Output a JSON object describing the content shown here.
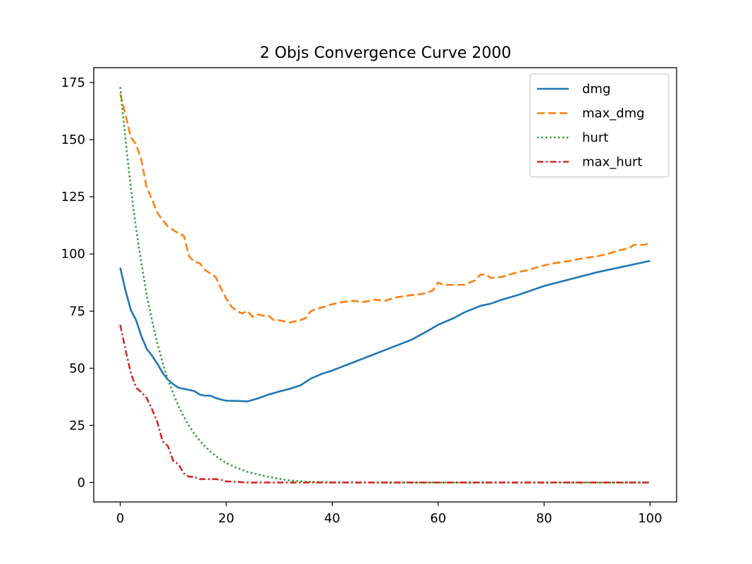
{
  "chart_data": {
    "type": "line",
    "title": "2 Objs Convergence Curve 2000",
    "xlabel": "",
    "ylabel": "",
    "xlim": [
      -5,
      105
    ],
    "ylim": [
      -8.5,
      181.5
    ],
    "x_ticks": [
      0,
      20,
      40,
      60,
      80,
      100
    ],
    "y_ticks": [
      0,
      25,
      50,
      75,
      100,
      125,
      150,
      175
    ],
    "legend_position": "top-right",
    "grid": false,
    "series": [
      {
        "name": "dmg",
        "color": "#1f77b4",
        "dash": "solid",
        "points": [
          [
            0,
            94
          ],
          [
            1,
            84
          ],
          [
            2,
            75.5
          ],
          [
            3,
            71
          ],
          [
            4,
            64
          ],
          [
            5,
            58.5
          ],
          [
            6,
            55.5
          ],
          [
            7,
            52
          ],
          [
            8,
            48
          ],
          [
            9,
            45
          ],
          [
            10,
            43
          ],
          [
            11,
            41.5
          ],
          [
            12,
            41
          ],
          [
            13,
            40.5
          ],
          [
            14,
            40
          ],
          [
            15,
            38.5
          ],
          [
            16,
            38
          ],
          [
            17,
            38
          ],
          [
            18,
            37
          ],
          [
            19,
            36.3
          ],
          [
            20,
            35.8
          ],
          [
            22,
            35.7
          ],
          [
            24,
            35.5
          ],
          [
            26,
            36.8
          ],
          [
            28,
            38.5
          ],
          [
            30,
            39.8
          ],
          [
            32,
            41
          ],
          [
            34,
            42.5
          ],
          [
            36,
            45.5
          ],
          [
            38,
            47.5
          ],
          [
            40,
            49
          ],
          [
            45,
            53.5
          ],
          [
            50,
            58
          ],
          [
            55,
            62.5
          ],
          [
            58,
            66.3
          ],
          [
            60,
            69
          ],
          [
            63,
            72
          ],
          [
            65,
            74.5
          ],
          [
            68,
            77.3
          ],
          [
            70,
            78.3
          ],
          [
            72,
            80
          ],
          [
            75,
            82
          ],
          [
            80,
            86
          ],
          [
            85,
            89
          ],
          [
            90,
            92
          ],
          [
            95,
            94.5
          ],
          [
            100,
            97
          ]
        ]
      },
      {
        "name": "max_dmg",
        "color": "#ff7f0e",
        "dash": "dashed",
        "points": [
          [
            0,
            170
          ],
          [
            1,
            161
          ],
          [
            2,
            151
          ],
          [
            3,
            148
          ],
          [
            4,
            141
          ],
          [
            5,
            129
          ],
          [
            6,
            124
          ],
          [
            7,
            118
          ],
          [
            8,
            115
          ],
          [
            9,
            112
          ],
          [
            10,
            110.5
          ],
          [
            11,
            109
          ],
          [
            12,
            108
          ],
          [
            13,
            99
          ],
          [
            14,
            96.5
          ],
          [
            15,
            96
          ],
          [
            16,
            93
          ],
          [
            17,
            91.5
          ],
          [
            18,
            90
          ],
          [
            19,
            85
          ],
          [
            20,
            80.5
          ],
          [
            21,
            77
          ],
          [
            22,
            75
          ],
          [
            23,
            74
          ],
          [
            24,
            75
          ],
          [
            25,
            72.5
          ],
          [
            26,
            73.5
          ],
          [
            27,
            73
          ],
          [
            28,
            73
          ],
          [
            29,
            71
          ],
          [
            30,
            71
          ],
          [
            31,
            70.5
          ],
          [
            32,
            70
          ],
          [
            33,
            70.5
          ],
          [
            34,
            71
          ],
          [
            35,
            72
          ],
          [
            36,
            75
          ],
          [
            37,
            76
          ],
          [
            38,
            76.5
          ],
          [
            40,
            78
          ],
          [
            42,
            79
          ],
          [
            44,
            79.5
          ],
          [
            46,
            79
          ],
          [
            48,
            80
          ],
          [
            50,
            79.5
          ],
          [
            52,
            81
          ],
          [
            55,
            82
          ],
          [
            57,
            82.5
          ],
          [
            59,
            84
          ],
          [
            60,
            87.5
          ],
          [
            61,
            86.5
          ],
          [
            63,
            86.5
          ],
          [
            65,
            86.5
          ],
          [
            67,
            88.5
          ],
          [
            68,
            91
          ],
          [
            69,
            91
          ],
          [
            70,
            89.5
          ],
          [
            72,
            90
          ],
          [
            75,
            92
          ],
          [
            77,
            93
          ],
          [
            80,
            95
          ],
          [
            82,
            96
          ],
          [
            85,
            97
          ],
          [
            87,
            98
          ],
          [
            90,
            99
          ],
          [
            92,
            100
          ],
          [
            94,
            101.5
          ],
          [
            96,
            102.5
          ],
          [
            97,
            104
          ],
          [
            99,
            104
          ],
          [
            100,
            105
          ]
        ]
      },
      {
        "name": "hurt",
        "color": "#2ca02c",
        "dash": "dotted",
        "points": [
          [
            0,
            173
          ],
          [
            1,
            150
          ],
          [
            2,
            129
          ],
          [
            3,
            111
          ],
          [
            4,
            96
          ],
          [
            5,
            82
          ],
          [
            6,
            71
          ],
          [
            7,
            61
          ],
          [
            8,
            52.5
          ],
          [
            9,
            45
          ],
          [
            10,
            39
          ],
          [
            11,
            33.5
          ],
          [
            12,
            28.8
          ],
          [
            13,
            24.8
          ],
          [
            14,
            21.3
          ],
          [
            15,
            18.3
          ],
          [
            16,
            15.8
          ],
          [
            17,
            13.6
          ],
          [
            18,
            11.7
          ],
          [
            19,
            10
          ],
          [
            20,
            8.6
          ],
          [
            22,
            6.4
          ],
          [
            24,
            4.7
          ],
          [
            26,
            3.5
          ],
          [
            28,
            2.5
          ],
          [
            30,
            1.6
          ],
          [
            32,
            0.9
          ],
          [
            35,
            0.4
          ],
          [
            40,
            0.1
          ],
          [
            50,
            0
          ],
          [
            60,
            0
          ],
          [
            70,
            0
          ],
          [
            80,
            0
          ],
          [
            90,
            0
          ],
          [
            100,
            0
          ]
        ]
      },
      {
        "name": "max_hurt",
        "color": "#d62728",
        "dash": "dashdot",
        "points": [
          [
            0,
            69
          ],
          [
            1,
            58
          ],
          [
            2,
            48
          ],
          [
            3,
            41.5
          ],
          [
            4,
            39.5
          ],
          [
            5,
            37
          ],
          [
            6,
            32
          ],
          [
            7,
            26.5
          ],
          [
            8,
            18
          ],
          [
            9,
            16
          ],
          [
            10,
            9.5
          ],
          [
            11,
            8
          ],
          [
            12,
            4
          ],
          [
            13,
            2.5
          ],
          [
            14,
            2.5
          ],
          [
            15,
            1.5
          ],
          [
            16,
            1.5
          ],
          [
            17,
            1.5
          ],
          [
            18,
            1.5
          ],
          [
            19,
            1.2
          ],
          [
            20,
            0.5
          ],
          [
            22,
            0.3
          ],
          [
            24,
            0
          ],
          [
            30,
            0
          ],
          [
            40,
            0
          ],
          [
            50,
            0
          ],
          [
            60,
            0
          ],
          [
            70,
            0
          ],
          [
            80,
            0
          ],
          [
            90,
            0
          ],
          [
            100,
            0
          ]
        ]
      }
    ]
  }
}
